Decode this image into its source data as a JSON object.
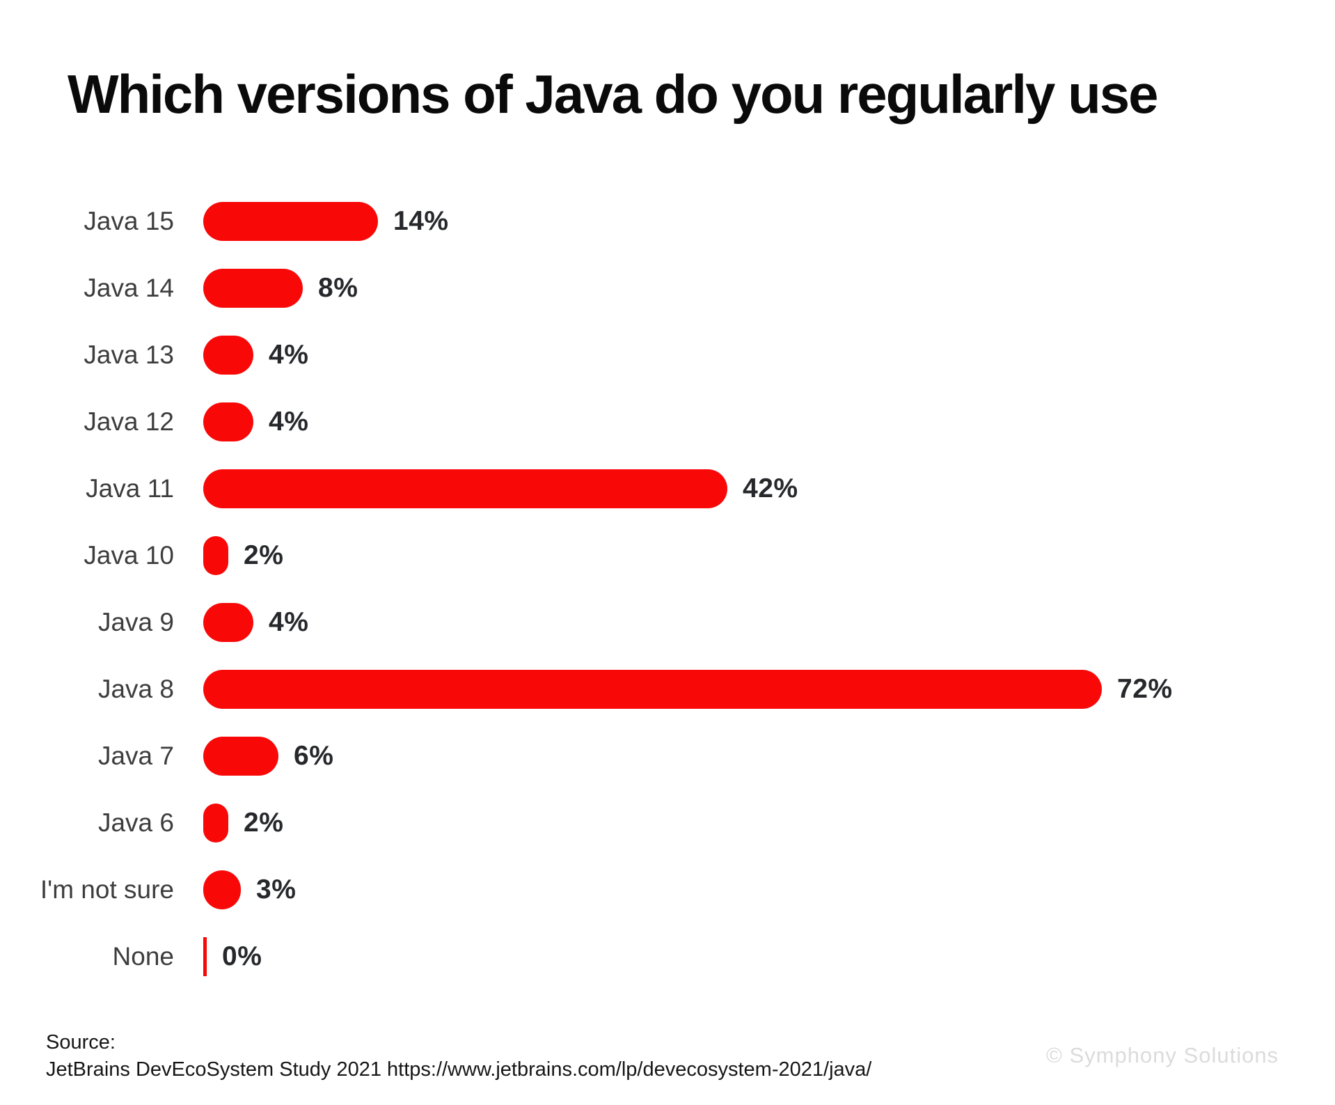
{
  "title": "Which versions of Java do you regularly use",
  "colors": {
    "bar": "#f90808",
    "title": "#0a0a0a",
    "label": "#3d3d3d",
    "value": "#26282c",
    "watermark": "#dbdbdb"
  },
  "chart_data": {
    "type": "bar",
    "orientation": "horizontal",
    "title": "Which versions of Java do you regularly use",
    "categories": [
      "Java 15",
      "Java 14",
      "Java 13",
      "Java 12",
      "Java 11",
      "Java 10",
      "Java 9",
      "Java 8",
      "Java 7",
      "Java 6",
      "I'm not sure",
      "None"
    ],
    "values": [
      14,
      8,
      4,
      4,
      42,
      2,
      4,
      72,
      6,
      2,
      3,
      0
    ],
    "value_labels": [
      "14%",
      "8%",
      "4%",
      "4%",
      "42%",
      "2%",
      "4%",
      "72%",
      "6%",
      "2%",
      "3%",
      "0%"
    ],
    "unit": "%",
    "xlim": [
      0,
      80
    ],
    "grid": false,
    "legend": false,
    "bar_color": "#f90808",
    "value_labels_position": "end-of-bar"
  },
  "footer": {
    "source_label": "Source:",
    "source_line": "JetBrains DevEcoSystem Study 2021 https://www.jetbrains.com/lp/devecosystem-2021/java/",
    "watermark": "© Symphony Solutions"
  }
}
